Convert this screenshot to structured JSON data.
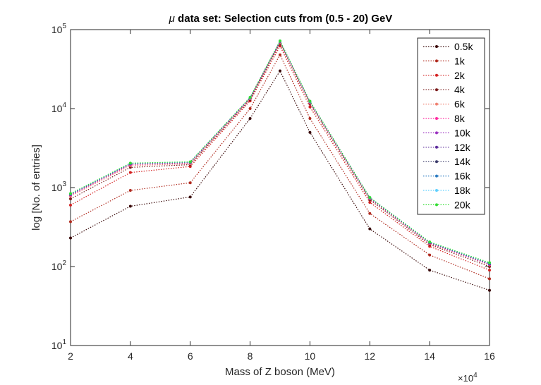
{
  "chart_data": {
    "type": "line",
    "title_prefix": "μ",
    "title_rest": " data set: Selection cuts from (0.5 - 20) GeV",
    "xlabel": "Mass of Z boson (MeV)",
    "ylabel": "log [No. of entries]",
    "x_exponent_label": "×10",
    "x_exponent_power": "4",
    "xlim": [
      20000,
      160000
    ],
    "ylim": [
      10,
      100000
    ],
    "yscale": "log",
    "x_ticks": [
      20000,
      40000,
      60000,
      80000,
      100000,
      120000,
      140000,
      160000
    ],
    "x_tick_labels": [
      "2",
      "4",
      "6",
      "8",
      "10",
      "12",
      "14",
      "16"
    ],
    "y_ticks": [
      10,
      100,
      1000,
      10000,
      100000
    ],
    "y_tick_base": "10",
    "y_tick_powers": [
      "1",
      "2",
      "3",
      "4",
      "5"
    ],
    "grid": false,
    "legend_position": "top-right",
    "x": [
      20000,
      40000,
      60000,
      80000,
      90000,
      100000,
      120000,
      140000,
      160000
    ],
    "series": [
      {
        "name": "0.5k",
        "color": "#3a0a0a",
        "values": [
          230,
          580,
          760,
          7500,
          30000,
          5000,
          300,
          90,
          50
        ]
      },
      {
        "name": "1k",
        "color": "#b02a1e",
        "values": [
          370,
          920,
          1150,
          10000,
          48000,
          7500,
          470,
          140,
          70
        ]
      },
      {
        "name": "2k",
        "color": "#d42020",
        "values": [
          600,
          1550,
          1850,
          12500,
          62000,
          10500,
          650,
          180,
          90
        ]
      },
      {
        "name": "4k",
        "color": "#7a1a1a",
        "values": [
          720,
          1800,
          1950,
          13000,
          67000,
          11500,
          700,
          190,
          100
        ]
      },
      {
        "name": "6k",
        "color": "#f08070",
        "values": [
          780,
          1900,
          2000,
          13300,
          69000,
          11800,
          720,
          195,
          105
        ]
      },
      {
        "name": "8k",
        "color": "#ff2aa0",
        "values": [
          800,
          1950,
          2050,
          13500,
          70000,
          12000,
          730,
          198,
          106
        ]
      },
      {
        "name": "10k",
        "color": "#9a30c0",
        "values": [
          810,
          1980,
          2070,
          13600,
          70500,
          12100,
          735,
          200,
          107
        ]
      },
      {
        "name": "12k",
        "color": "#5a2a9a",
        "values": [
          820,
          2000,
          2080,
          13700,
          71000,
          12200,
          740,
          201,
          108
        ]
      },
      {
        "name": "14k",
        "color": "#3a3a6a",
        "values": [
          825,
          2010,
          2090,
          13750,
          71200,
          12250,
          742,
          202,
          109
        ]
      },
      {
        "name": "16k",
        "color": "#2a7ac0",
        "values": [
          830,
          2020,
          2100,
          13800,
          71500,
          12300,
          745,
          203,
          110
        ]
      },
      {
        "name": "18k",
        "color": "#5fd0ff",
        "values": [
          835,
          2030,
          2110,
          13850,
          71800,
          12350,
          748,
          204,
          111
        ]
      },
      {
        "name": "20k",
        "color": "#33dd33",
        "values": [
          840,
          2040,
          2120,
          13900,
          72000,
          12400,
          750,
          205,
          112
        ]
      }
    ]
  }
}
